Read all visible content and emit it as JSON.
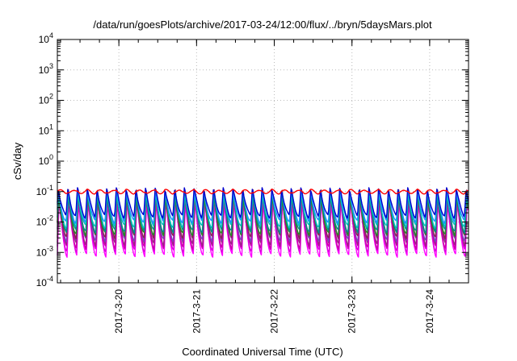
{
  "chart_data": {
    "type": "line",
    "title": "/data/run/goesPlots/archive/2017-03-24/12:00/flux/../bryn/5daysMars.plot",
    "xlabel": "Coordinated Universal Time (UTC)",
    "ylabel": "cSv/day",
    "yscale": "log",
    "ylim_exponents": [
      -4,
      4
    ],
    "y_ticks": [
      {
        "base": "10",
        "exp": "4"
      },
      {
        "base": "10",
        "exp": "3"
      },
      {
        "base": "10",
        "exp": "2"
      },
      {
        "base": "10",
        "exp": "1"
      },
      {
        "base": "10",
        "exp": "0"
      },
      {
        "base": "10",
        "exp": "-1"
      },
      {
        "base": "10",
        "exp": "-2"
      },
      {
        "base": "10",
        "exp": "-3"
      },
      {
        "base": "10",
        "exp": "-4"
      }
    ],
    "x_range_days": [
      "2017-03-19T05:00",
      "2017-03-24T12:00"
    ],
    "x_ticks": [
      "2017-3-20",
      "2017-3-21",
      "2017-3-22",
      "2017-3-23",
      "2017-3-24"
    ],
    "grid": true,
    "legend": "none",
    "cycles_per_day": 8,
    "series": [
      {
        "color": "#ff00ff",
        "peak": 0.05,
        "trough": 0.0008
      },
      {
        "color": "#dd00dd",
        "peak": 0.06,
        "trough": 0.0011
      },
      {
        "color": "#cc00aa",
        "peak": 0.07,
        "trough": 0.0014
      },
      {
        "color": "#a0208a",
        "peak": 0.09,
        "trough": 0.0018
      },
      {
        "color": "#8040c0",
        "peak": 0.085,
        "trough": 0.0025
      },
      {
        "color": "#8b2252",
        "peak": 0.11,
        "trough": 0.0032
      },
      {
        "color": "#228b22",
        "peak": 0.075,
        "trough": 0.004
      },
      {
        "color": "#008b8b",
        "peak": 0.09,
        "trough": 0.005
      },
      {
        "color": "#00bfbf",
        "peak": 0.1,
        "trough": 0.007
      },
      {
        "color": "#1e90ff",
        "peak": 0.12,
        "trough": 0.01
      },
      {
        "color": "#0000cd",
        "peak": 0.13,
        "trough": 0.015
      },
      {
        "color": "#ff0000",
        "peak": 0.105,
        "trough": 0.095
      }
    ]
  }
}
